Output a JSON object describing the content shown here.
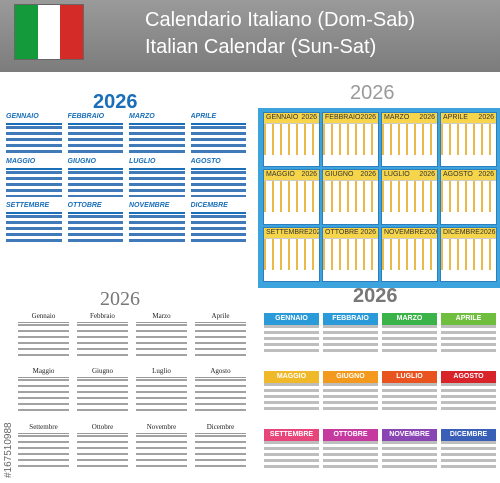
{
  "header": {
    "title_line1": "Calendario Italiano (Dom-Sab)",
    "title_line2": "Italian Calendar (Sun-Sat)"
  },
  "flag_colors": [
    "#159a3b",
    "#ffffff",
    "#d52b28"
  ],
  "year": "2026",
  "panel1": {
    "months": [
      "GENNAIO",
      "FEBBRAIO",
      "MARZO",
      "APRILE",
      "MAGGIO",
      "GIUGNO",
      "LUGLIO",
      "AGOSTO",
      "SETTEMBRE",
      "OTTOBRE",
      "NOVEMBRE",
      "DICEMBRE"
    ]
  },
  "panel2": {
    "months": [
      "GENNAIO",
      "FEBBRAIO",
      "MARZO",
      "APRILE",
      "MAGGIO",
      "GIUGNO",
      "LUGLIO",
      "AGOSTO",
      "SETTEMBRE",
      "OTTOBRE",
      "NOVEMBRE",
      "DICEMBRE"
    ]
  },
  "panel3": {
    "months": [
      "Gennaio",
      "Febbraio",
      "Marzo",
      "Aprile",
      "Maggio",
      "Giugno",
      "Luglio",
      "Agosto",
      "Settembre",
      "Ottobre",
      "Novembre",
      "Dicembre"
    ]
  },
  "panel4": {
    "months": [
      "GENNAIO",
      "FEBBRAIO",
      "MARZO",
      "APRILE",
      "MAGGIO",
      "GIUGNO",
      "LUGLIO",
      "AGOSTO",
      "SETTEMBRE",
      "OTTOBRE",
      "NOVEMBRE",
      "DICEMBRE"
    ],
    "colors": [
      "#2a9ad8",
      "#2a9ad8",
      "#3ab449",
      "#6fbe3d",
      "#f0b92a",
      "#f39a1e",
      "#e8531f",
      "#d8232a",
      "#e8457a",
      "#c63aa0",
      "#8a45b5",
      "#3a5fb7"
    ]
  },
  "watermark": "#167510988"
}
